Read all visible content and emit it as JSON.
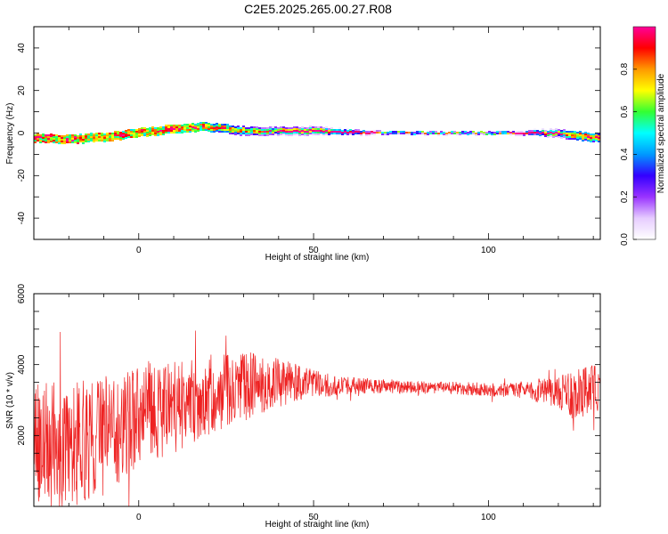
{
  "title": "C2E5.2025.265.00.27.R08",
  "chart_data": [
    {
      "type": "heatmap",
      "name": "spectrogram",
      "xlabel": "Height of straight line (km)",
      "ylabel": "Frequency (Hz)",
      "xlim": [
        -30,
        132
      ],
      "ylim": [
        -50,
        50
      ],
      "xticks": [
        "0",
        "50",
        "100"
      ],
      "yticks": [
        "-40",
        "-20",
        "0",
        "20",
        "40"
      ],
      "colorbar": {
        "label": "Normalized spectral amplitude",
        "range": [
          0,
          1
        ],
        "ticks": [
          "0.0",
          "0.2",
          "0.4",
          "0.6",
          "0.8"
        ],
        "colors": [
          "#ffffff",
          "#e6ccff",
          "#9933ff",
          "#3300ff",
          "#0099ff",
          "#00ffff",
          "#33ff33",
          "#ffff00",
          "#ff9900",
          "#ff0000",
          "#ff0099"
        ]
      },
      "ridge": {
        "height_km": [
          -30,
          -20,
          -10,
          0,
          10,
          20,
          30,
          40,
          50,
          60,
          70,
          80,
          100,
          110,
          120,
          125,
          130
        ],
        "frequency_hz": [
          -2,
          -3,
          -2,
          0,
          2,
          3,
          1,
          1,
          1,
          0.5,
          0,
          0,
          0,
          0,
          0,
          -1,
          -2
        ],
        "spread_hz": [
          9,
          8,
          6,
          5,
          4,
          3,
          2,
          1.5,
          1.5,
          1,
          0.5,
          0.5,
          0.5,
          0.7,
          1.5,
          2.5,
          2.5
        ]
      }
    },
    {
      "type": "line",
      "name": "snr",
      "xlabel": "Height of straight line (km)",
      "ylabel": "SNR (10 * v/v)",
      "xlim": [
        -30,
        132
      ],
      "ylim": [
        0,
        6000
      ],
      "xticks": [
        "0",
        "50",
        "100"
      ],
      "yticks": [
        "2000",
        "4000",
        "6000"
      ],
      "color": "#ee2222",
      "envelope": {
        "height_km": [
          -30,
          -20,
          -10,
          0,
          10,
          20,
          30,
          40,
          50,
          60,
          70,
          80,
          90,
          100,
          110,
          120,
          125,
          130,
          132
        ],
        "mean": [
          1800,
          1700,
          2000,
          2600,
          2800,
          3100,
          3400,
          3500,
          3450,
          3400,
          3400,
          3350,
          3350,
          3300,
          3300,
          3200,
          3100,
          3300,
          3300
        ],
        "spread": [
          1700,
          1800,
          1700,
          1500,
          1300,
          1100,
          1000,
          700,
          400,
          250,
          200,
          180,
          180,
          200,
          250,
          450,
          800,
          700,
          600
        ]
      }
    }
  ]
}
